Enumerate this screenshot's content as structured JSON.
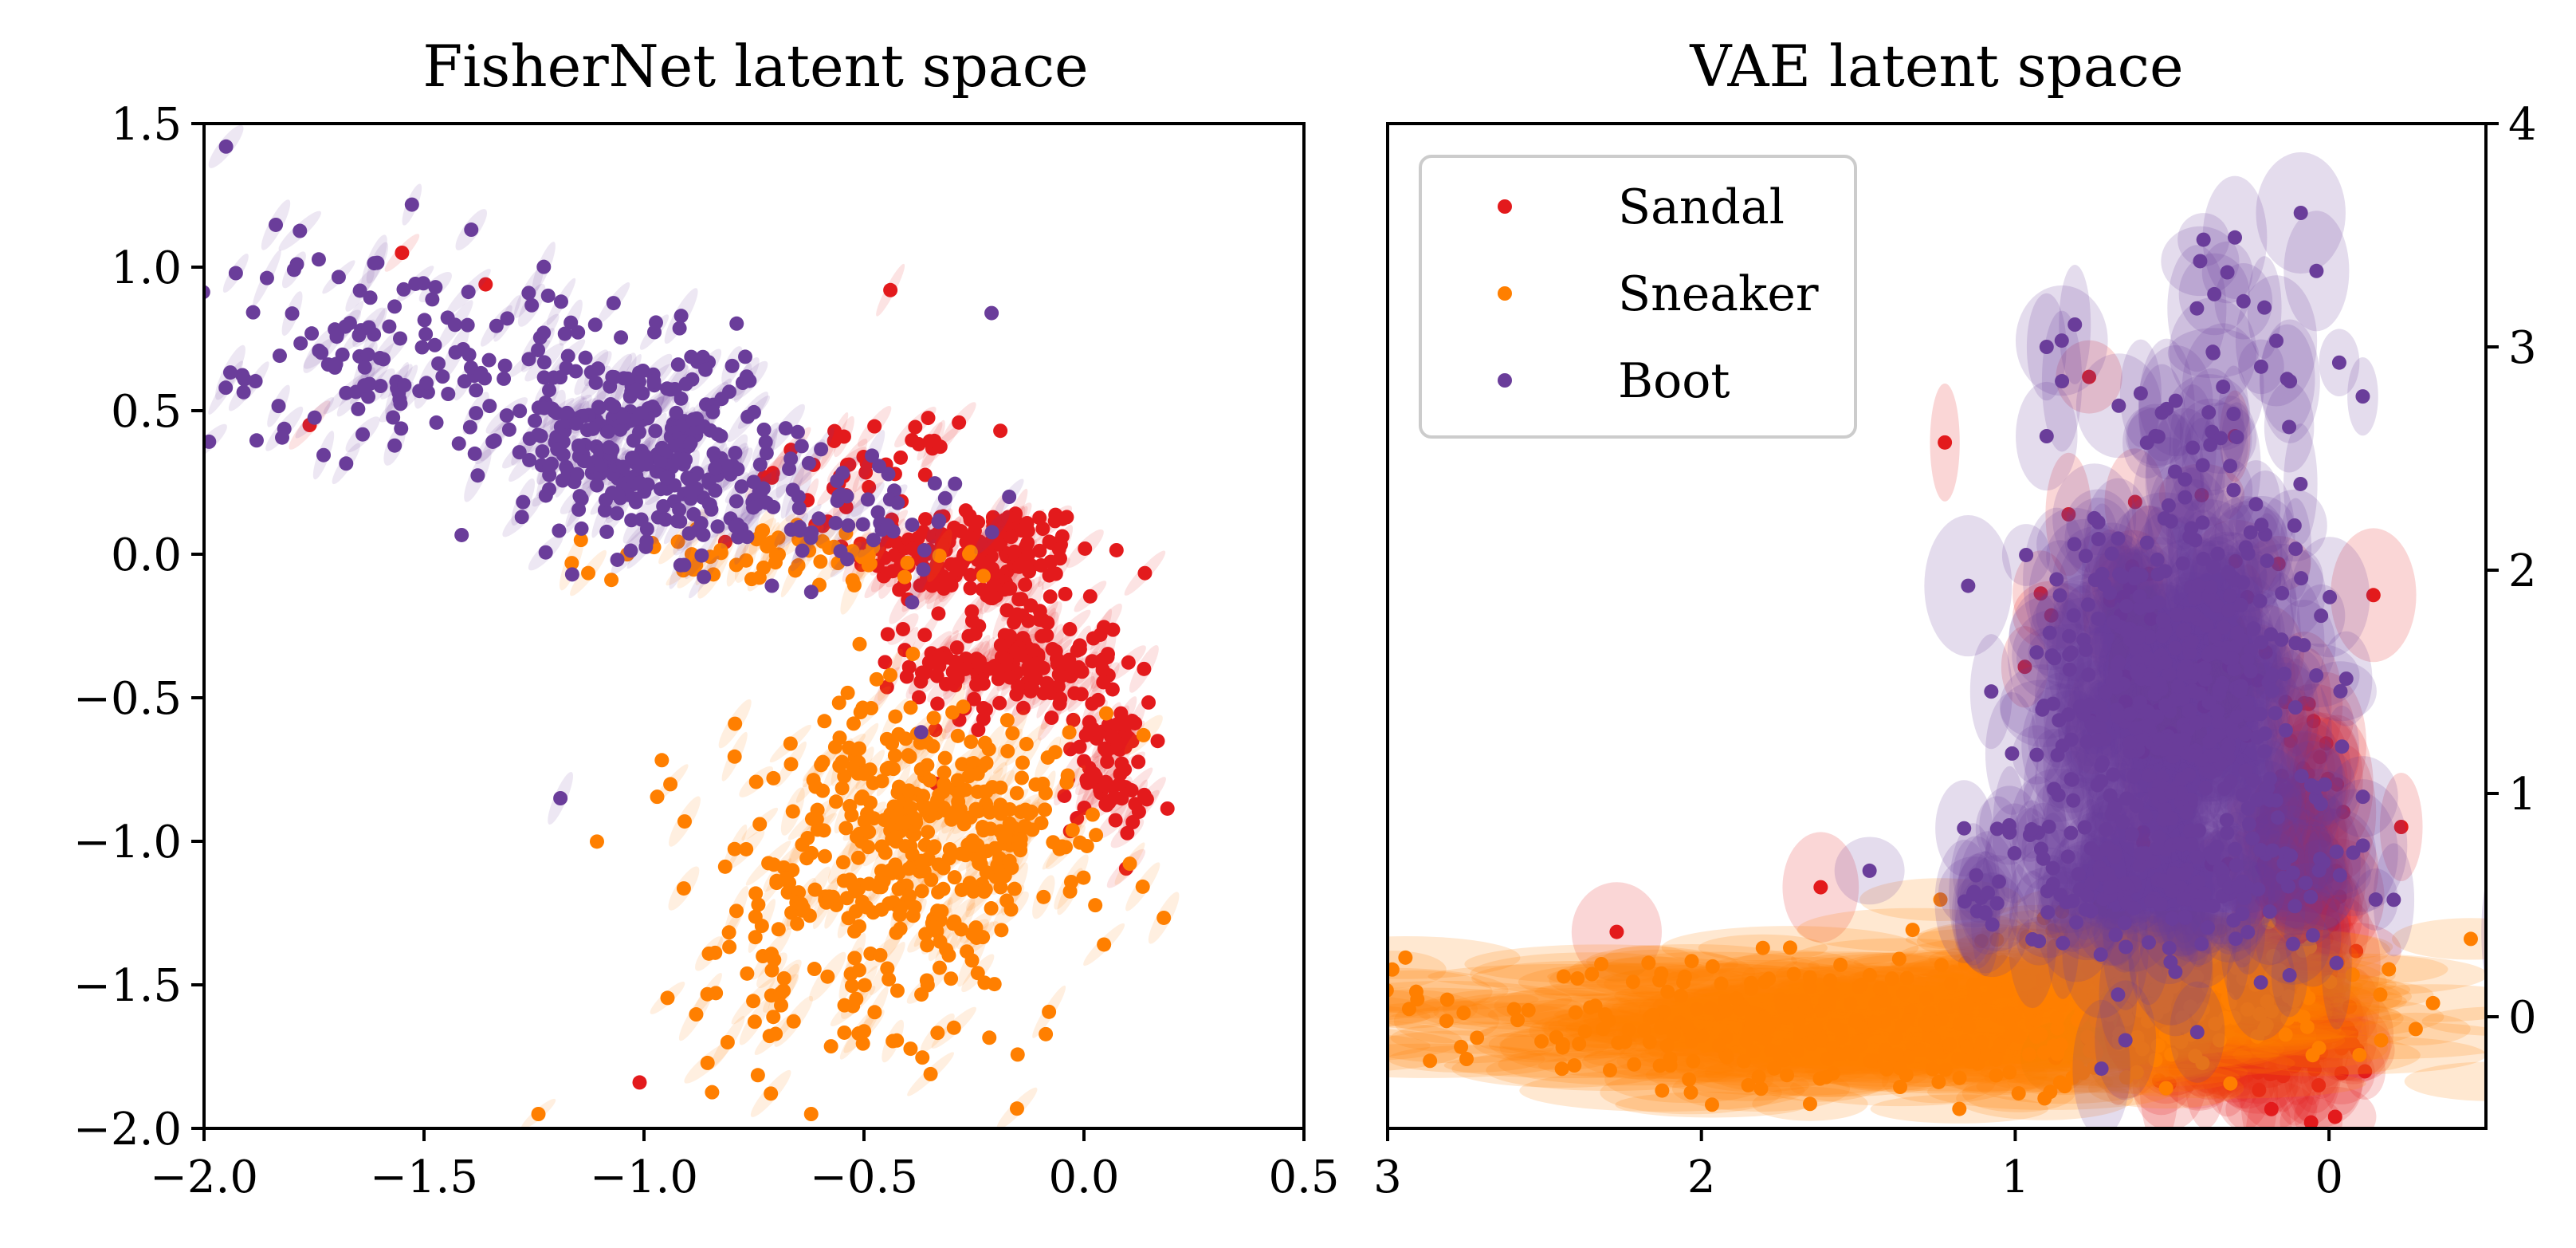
{
  "chart_data": [
    {
      "type": "scatter",
      "title": "FisherNet latent space",
      "xlim": [
        -2.0,
        0.5
      ],
      "ylim": [
        -2.0,
        1.5
      ],
      "xticks": [
        -2.0,
        -1.5,
        -1.0,
        -0.5,
        0.0,
        0.5
      ],
      "xtick_labels": [
        "−2.0",
        "−1.5",
        "−1.0",
        "−0.5",
        "0.0",
        "0.5"
      ],
      "yticks": [
        -2.0,
        -1.5,
        -1.0,
        -0.5,
        0.0,
        0.5,
        1.0,
        1.5
      ],
      "ytick_labels": [
        "−2.0",
        "−1.5",
        "−1.0",
        "−0.5",
        "0.0",
        "0.5",
        "1.0",
        "1.5"
      ],
      "yaxis_side": "left",
      "legend": false,
      "series": [
        {
          "name": "Sandal",
          "color": "#e31a1c",
          "clusters": [
            {
              "center": [
                -0.25,
                0.0
              ],
              "spread": [
                0.14,
                0.09
              ],
              "n": 170
            },
            {
              "center": [
                -0.15,
                -0.38
              ],
              "spread": [
                0.12,
                0.1
              ],
              "n": 170
            },
            {
              "center": [
                0.05,
                -0.75
              ],
              "spread": [
                0.05,
                0.12
              ],
              "n": 70
            },
            {
              "center": [
                -0.5,
                0.3
              ],
              "spread": [
                0.1,
                0.08
              ],
              "n": 40
            }
          ],
          "points": [
            [
              -0.44,
              0.92
            ],
            [
              -0.19,
              0.43
            ],
            [
              -1.76,
              0.45
            ],
            [
              -1.36,
              0.94
            ],
            [
              -1.55,
              1.05
            ],
            [
              -1.01,
              -1.84
            ],
            [
              -0.17,
              -0.12
            ]
          ]
        },
        {
          "name": "Sneaker",
          "color": "#ff7f00",
          "clusters": [
            {
              "center": [
                -0.3,
                -0.95
              ],
              "spread": [
                0.14,
                0.2
              ],
              "n": 260
            },
            {
              "center": [
                -0.55,
                -1.05
              ],
              "spread": [
                0.2,
                0.3
              ],
              "n": 160
            },
            {
              "center": [
                -0.5,
                -1.55
              ],
              "spread": [
                0.22,
                0.2
              ],
              "n": 50
            },
            {
              "center": [
                -0.7,
                0.0
              ],
              "spread": [
                0.22,
                0.06
              ],
              "n": 60
            }
          ],
          "points": [
            [
              -1.24,
              -1.95
            ],
            [
              -0.62,
              -1.95
            ],
            [
              -0.81,
              -1.7
            ]
          ]
        },
        {
          "name": "Boot",
          "color": "#6a3d9a",
          "clusters": [
            {
              "center": [
                -1.0,
                0.38
              ],
              "spread": [
                0.14,
                0.17
              ],
              "n": 300
            },
            {
              "center": [
                -1.55,
                0.7
              ],
              "spread": [
                0.25,
                0.18
              ],
              "n": 150
            },
            {
              "center": [
                -0.65,
                0.15
              ],
              "spread": [
                0.2,
                0.12
              ],
              "n": 80
            }
          ],
          "points": [
            [
              -1.95,
              1.42
            ],
            [
              -0.21,
              0.84
            ],
            [
              -1.19,
              -0.85
            ],
            [
              -0.37,
              -0.62
            ],
            [
              -0.17,
              0.2
            ]
          ]
        }
      ]
    },
    {
      "type": "scatter",
      "title": "VAE latent space",
      "xlim": [
        3.0,
        -0.5
      ],
      "ylim": [
        -0.5,
        4.0
      ],
      "xticks": [
        3,
        2,
        1,
        0
      ],
      "xtick_labels": [
        "3",
        "2",
        "1",
        "0"
      ],
      "yticks": [
        0,
        1,
        2,
        3,
        4
      ],
      "ytick_labels": [
        "0",
        "1",
        "2",
        "3",
        "4"
      ],
      "yaxis_side": "right",
      "legend": true,
      "legend_position": "top-left",
      "series": [
        {
          "name": "Sandal",
          "color": "#e31a1c",
          "clusters": [
            {
              "center": [
                0.1,
                0.45
              ],
              "spread": [
                0.08,
                0.4
              ],
              "n": 110
            },
            {
              "center": [
                0.3,
                -0.1
              ],
              "spread": [
                0.22,
                0.1
              ],
              "n": 90
            },
            {
              "center": [
                0.5,
                1.7
              ],
              "spread": [
                0.2,
                0.4
              ],
              "n": 40
            }
          ],
          "points": [
            [
              2.27,
              0.38
            ],
            [
              1.62,
              0.58
            ],
            [
              0.02,
              0.0
            ],
            [
              -0.23,
              0.85
            ],
            [
              0.83,
              2.25
            ],
            [
              0.3,
              2.6
            ]
          ]
        },
        {
          "name": "Sneaker",
          "color": "#ff7f00",
          "clusters": [
            {
              "center": [
                1.6,
                -0.05
              ],
              "spread": [
                0.7,
                0.14
              ],
              "n": 320
            },
            {
              "center": [
                0.6,
                0.1
              ],
              "spread": [
                0.35,
                0.15
              ],
              "n": 200
            }
          ],
          "points": []
        },
        {
          "name": "Boot",
          "color": "#6a3d9a",
          "clusters": [
            {
              "center": [
                0.5,
                1.35
              ],
              "spread": [
                0.22,
                0.45
              ],
              "n": 380
            },
            {
              "center": [
                0.55,
                0.6
              ],
              "spread": [
                0.3,
                0.15
              ],
              "n": 120
            },
            {
              "center": [
                0.4,
                2.4
              ],
              "spread": [
                0.25,
                0.45
              ],
              "n": 60
            }
          ],
          "points": [
            [
              0.4,
              3.48
            ],
            [
              0.3,
              3.49
            ],
            [
              0.09,
              3.6
            ],
            [
              0.04,
              3.34
            ],
            [
              0.9,
              3.0
            ],
            [
              0.81,
              3.1
            ],
            [
              0.9,
              2.6
            ],
            [
              1.15,
              1.93
            ],
            [
              0.11,
              2.2
            ]
          ]
        }
      ]
    }
  ],
  "legend": {
    "items": [
      {
        "label": "Sandal",
        "color": "#e31a1c"
      },
      {
        "label": "Sneaker",
        "color": "#ff7f00"
      },
      {
        "label": "Boot",
        "color": "#6a3d9a"
      }
    ]
  }
}
